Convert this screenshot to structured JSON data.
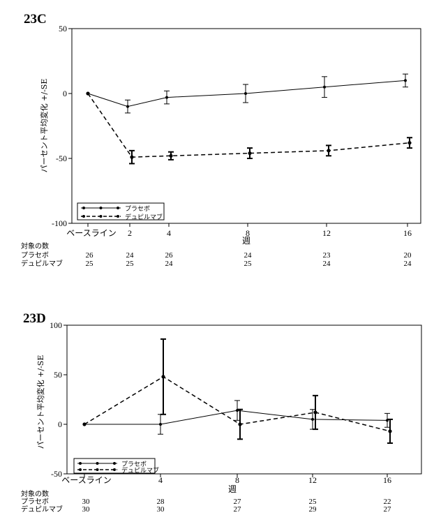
{
  "chart_data": [
    {
      "type": "line",
      "title": "23C",
      "ylabel": "パーセント平均変化 +/-SE",
      "xlabel": "週",
      "x_tick_labels": [
        "ベースライン",
        "2",
        "4",
        "8",
        "12",
        "16"
      ],
      "x": [
        0,
        2,
        4,
        8,
        12,
        16
      ],
      "ylim": [
        -100,
        50
      ],
      "y_ticks": [
        50,
        0,
        -50,
        -100
      ],
      "grid": false,
      "legend_position": "bottom-left",
      "series": [
        {
          "name": "プラセボ",
          "style": "solid",
          "values": [
            0,
            -10,
            -3,
            0,
            5,
            10
          ],
          "se": [
            0,
            5,
            5,
            7,
            8,
            5
          ]
        },
        {
          "name": "デュピルマブ",
          "style": "dashed",
          "values": [
            0,
            -49,
            -48,
            -46,
            -44,
            -38
          ],
          "se": [
            0,
            5,
            3,
            4,
            4,
            4
          ]
        }
      ],
      "n_table": {
        "heading": "対象の数",
        "rows": [
          {
            "label": "プラセボ",
            "values": [
              "26",
              "24",
              "26",
              "24",
              "23",
              "20"
            ]
          },
          {
            "label": "デュピルマブ",
            "values": [
              "25",
              "25",
              "24",
              "25",
              "24",
              "24"
            ]
          }
        ]
      }
    },
    {
      "type": "line",
      "title": "23D",
      "ylabel": "パーセント平均変化 +/-SE",
      "xlabel": "週",
      "x_tick_labels": [
        "ベースライン",
        "4",
        "8",
        "12",
        "16"
      ],
      "x": [
        0,
        4,
        8,
        12,
        16
      ],
      "ylim": [
        -50,
        100
      ],
      "y_ticks": [
        100,
        50,
        0,
        -50
      ],
      "grid": false,
      "legend_position": "bottom-left",
      "series": [
        {
          "name": "プラセボ",
          "style": "solid",
          "values": [
            0,
            0,
            14,
            5,
            4
          ],
          "se": [
            0,
            10,
            10,
            10,
            7
          ]
        },
        {
          "name": "デュピルマブ",
          "style": "dashed",
          "values": [
            0,
            48,
            0,
            12,
            -7
          ],
          "se": [
            0,
            38,
            15,
            17,
            12
          ]
        }
      ],
      "n_table": {
        "heading": "対象の数",
        "rows": [
          {
            "label": "プラセボ",
            "values": [
              "30",
              "28",
              "27",
              "25",
              "22"
            ]
          },
          {
            "label": "デュピルマブ",
            "values": [
              "30",
              "30",
              "27",
              "29",
              "27"
            ]
          }
        ]
      }
    }
  ]
}
